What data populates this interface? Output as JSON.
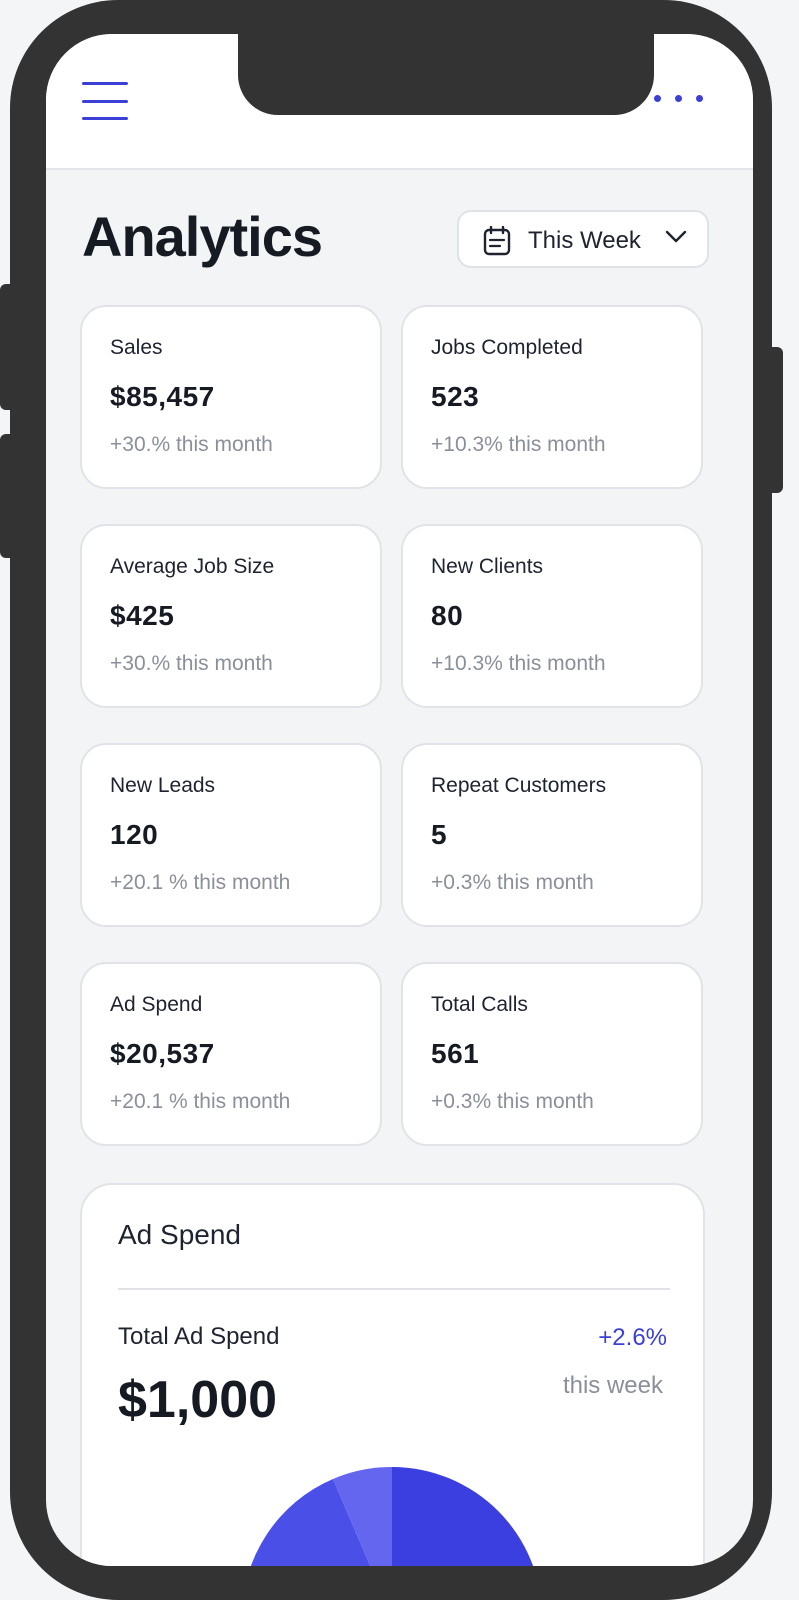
{
  "header": {
    "menu_icon": "hamburger-menu-icon",
    "more_icon": "more-horizontal-icon"
  },
  "page": {
    "title": "Analytics"
  },
  "period_selector": {
    "icon": "calendar-icon",
    "label": "This Week",
    "chevron_icon": "chevron-down-icon"
  },
  "metrics": [
    {
      "title": "Sales",
      "value": "$85,457",
      "change": "+30.% this month"
    },
    {
      "title": "Jobs Completed",
      "value": "523",
      "change": "+10.3% this month"
    },
    {
      "title": "Average Job Size",
      "value": "$425",
      "change": "+30.% this month"
    },
    {
      "title": "New Clients",
      "value": "80",
      "change": "+10.3% this month"
    },
    {
      "title": "New Leads",
      "value": "120",
      "change": "+20.1 % this month"
    },
    {
      "title": "Repeat Customers",
      "value": "5",
      "change": "+0.3% this month"
    },
    {
      "title": "Ad Spend",
      "value": "$20,537",
      "change": "+20.1 % this month"
    },
    {
      "title": "Total Calls",
      "value": "561",
      "change": "+0.3% this month"
    }
  ],
  "ad_spend": {
    "title": "Ad Spend",
    "total_label": "Total Ad Spend",
    "total_value": "$1,000",
    "change": "+2.6%",
    "period": "this week"
  },
  "colors": {
    "accent": "#3b3fd6",
    "pie_primary": "#3c3fe0",
    "pie_secondary": "#4a4fe8",
    "pie_tertiary": "#6466ef"
  }
}
